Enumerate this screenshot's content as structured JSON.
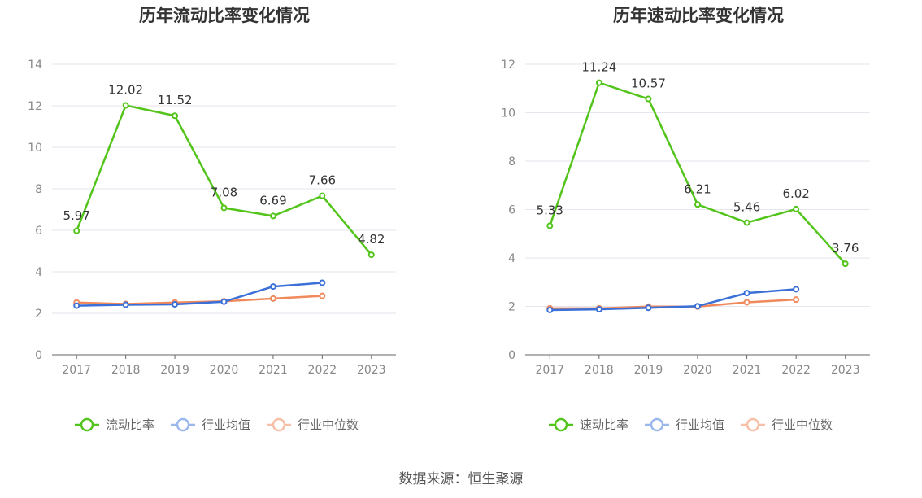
{
  "charts": [
    {
      "type": "line",
      "title": "历年流动比率变化情况",
      "categories": [
        "2017",
        "2018",
        "2019",
        "2020",
        "2021",
        "2022",
        "2023"
      ],
      "ylim": [
        0,
        14
      ],
      "yticks": [
        0,
        2,
        4,
        6,
        8,
        10,
        12,
        14
      ],
      "grid": true,
      "legend_position": "bottom",
      "series": [
        {
          "name": "流动比率",
          "color": "#52c41a",
          "labels": true,
          "values": [
            5.97,
            12.02,
            11.52,
            7.08,
            6.69,
            7.66,
            4.82
          ]
        },
        {
          "name": "行业均值",
          "color": "#3a70d8",
          "labels": false,
          "values": [
            2.37,
            2.41,
            2.43,
            2.56,
            3.29,
            3.47,
            null
          ]
        },
        {
          "name": "行业中位数",
          "color": "#f08a5d",
          "labels": false,
          "values": [
            2.52,
            2.45,
            2.52,
            2.58,
            2.71,
            2.84,
            null
          ]
        }
      ]
    },
    {
      "type": "line",
      "title": "历年速动比率变化情况",
      "categories": [
        "2017",
        "2018",
        "2019",
        "2020",
        "2021",
        "2022",
        "2023"
      ],
      "ylim": [
        0,
        12
      ],
      "yticks": [
        0,
        2,
        4,
        6,
        8,
        10,
        12
      ],
      "grid": true,
      "legend_position": "bottom",
      "series": [
        {
          "name": "速动比率",
          "color": "#52c41a",
          "labels": true,
          "values": [
            5.33,
            11.24,
            10.57,
            6.21,
            5.46,
            6.02,
            3.76
          ]
        },
        {
          "name": "行业均值",
          "color": "#3a70d8",
          "labels": false,
          "values": [
            1.85,
            1.88,
            1.94,
            2.01,
            2.55,
            2.71,
            null
          ]
        },
        {
          "name": "行业中位数",
          "color": "#f08a5d",
          "labels": false,
          "values": [
            1.92,
            1.92,
            1.99,
            1.99,
            2.17,
            2.28,
            null
          ]
        }
      ]
    }
  ],
  "footer": {
    "source": "数据来源：恒生聚源"
  }
}
